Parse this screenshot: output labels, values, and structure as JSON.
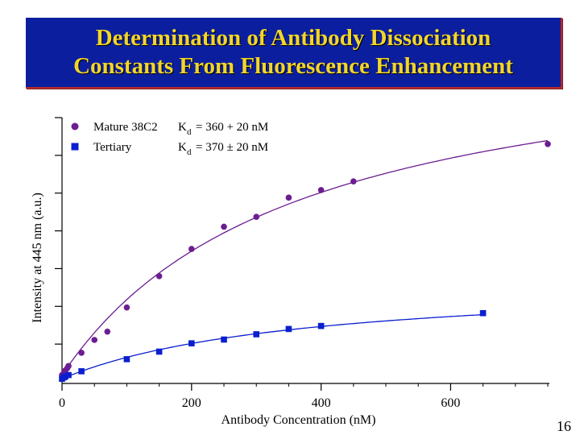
{
  "slide": {
    "title_line1": "Determination of Antibody Dissociation",
    "title_line2": "Constants From Fluorescence Enhancement",
    "page_number": "16"
  },
  "colors": {
    "title_background": "#0b1f9e",
    "title_text": "#f2d52c",
    "title_border": "#b52a2a",
    "mature": "#6b1d91",
    "tertiary": "#0b1fcf"
  },
  "chart_data": {
    "type": "scatter",
    "xlabel": "Antibody Concentration (nM)",
    "ylabel": "Intensity at 445 nm (a.u.)",
    "xlim": [
      0,
      750
    ],
    "ylim": [
      0,
      7
    ],
    "x_ticks": [
      0,
      200,
      400,
      600
    ],
    "x_tick_labels": [
      "0",
      "200",
      "400",
      "600"
    ],
    "y_ticks": [
      1,
      2,
      3,
      4,
      5,
      6,
      7
    ],
    "y_tick_labels": [],
    "grid": false,
    "legend_position": "top-left",
    "series": [
      {
        "name": "Mature 38C2",
        "kd_label": "K",
        "kd_sub": "d",
        "kd_value": "= 360 + 20 nM",
        "marker": "circle",
        "color": "#6b1d91",
        "x": [
          0,
          3,
          5,
          8,
          10,
          30,
          50,
          70,
          100,
          150,
          200,
          250,
          300,
          350,
          400,
          450,
          750
        ],
        "y": [
          0.18,
          0.24,
          0.3,
          0.36,
          0.42,
          0.77,
          1.11,
          1.33,
          1.97,
          2.8,
          3.52,
          4.11,
          4.37,
          4.88,
          5.08,
          5.31,
          6.3
        ]
      },
      {
        "name": "Tertiary",
        "kd_label": "K",
        "kd_sub": "d",
        "kd_value": "= 370 ± 20 nM",
        "marker": "square",
        "color": "#0b1fcf",
        "x": [
          0,
          3,
          5,
          10,
          30,
          100,
          150,
          200,
          250,
          300,
          350,
          400,
          650
        ],
        "y": [
          0.08,
          0.12,
          0.14,
          0.18,
          0.28,
          0.6,
          0.8,
          1.02,
          1.12,
          1.26,
          1.4,
          1.48,
          1.82
        ]
      }
    ]
  }
}
